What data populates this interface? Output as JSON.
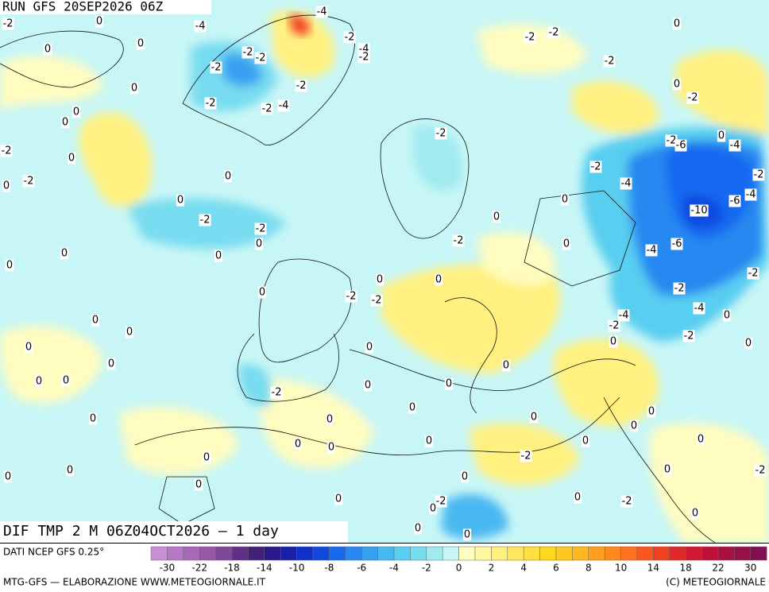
{
  "header": {
    "run": "RUN GFS 20SEP2026 06Z"
  },
  "map_title": "DIF TMP 2 M 06Z04OCT2026 — 1 day",
  "legend": {
    "source": "DATI NCEP GFS 0.25°",
    "colors": [
      "#c890d8",
      "#b878c8",
      "#a868b8",
      "#9858a8",
      "#804898",
      "#603088",
      "#402078",
      "#281888",
      "#1820a8",
      "#1030c8",
      "#1048e0",
      "#1868f0",
      "#2888f0",
      "#38a0f0",
      "#48b8f0",
      "#58cef0",
      "#78dcf0",
      "#a0eaf0",
      "#c8f6f6",
      "#fffcc0",
      "#fff8a0",
      "#fff080",
      "#ffe860",
      "#ffe040",
      "#ffd820",
      "#ffc820",
      "#ffb820",
      "#ffa020",
      "#ff8820",
      "#ff7020",
      "#f85820",
      "#f04020",
      "#e02828",
      "#d01830",
      "#c01038",
      "#a81040",
      "#981048",
      "#801050"
    ],
    "ticks": [
      "-30",
      "-22",
      "-18",
      "-14",
      "-10",
      "-8",
      "-6",
      "-4",
      "-2",
      "0",
      "2",
      "4",
      "6",
      "8",
      "10",
      "14",
      "18",
      "22",
      "30"
    ]
  },
  "footer": {
    "left": "MTG-GFS — ELABORAZIONE WWW.METEOGIORNALE.IT",
    "right": "(C) METEOGIORNALE"
  },
  "contour_labels": [
    "-2",
    "0",
    "0",
    "0",
    "-4",
    "-4",
    "-2",
    "-4",
    "-2",
    "-2",
    "-2",
    "-2",
    "-2",
    "-2",
    "-2",
    "-4",
    "-2",
    "-2",
    "0",
    "-2",
    "0",
    "0",
    "0",
    "-2",
    "0",
    "-2",
    "0",
    "0",
    "0",
    "-2",
    "-2",
    "0",
    "0",
    "0",
    "0",
    "-2",
    "0",
    "-2",
    "0",
    "0",
    "-2",
    "-4",
    "-2",
    "0",
    "0",
    "-2",
    "-6",
    "-4",
    "-2",
    "-10",
    "-6",
    "-4",
    "-6",
    "-4",
    "-2",
    "-2",
    "-4",
    "0",
    "-2",
    "0",
    "-4",
    "-2",
    "0",
    "0",
    "0",
    "-2",
    "-2",
    "0",
    "0",
    "0",
    "0",
    "0",
    "0",
    "0",
    "0",
    "0",
    "-2",
    "0",
    "0",
    "0",
    "0",
    "0",
    "0",
    "0",
    "0",
    "0",
    "0",
    "0",
    "0",
    "0",
    "0",
    "-2",
    "0",
    "0",
    "0",
    "0",
    "0",
    "-2",
    "0",
    "0",
    "-2",
    "-2",
    "0",
    "0",
    "0",
    "0",
    "-2"
  ]
}
